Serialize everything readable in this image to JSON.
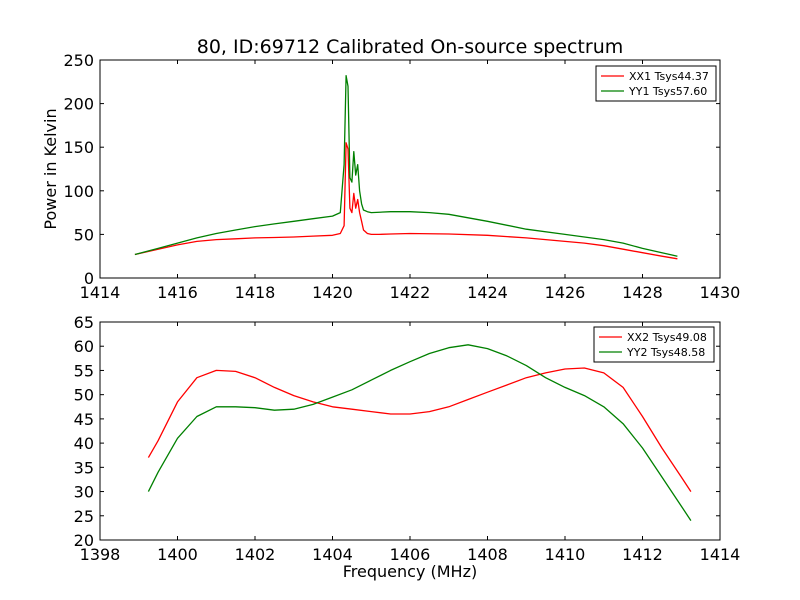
{
  "chart_data": [
    {
      "type": "line",
      "title": "80, ID:69712 Calibrated On-source spectrum",
      "xlabel": "",
      "ylabel": "Power in Kelvin",
      "xlim": [
        1414,
        1430
      ],
      "ylim": [
        0,
        250
      ],
      "xticks": [
        1414,
        1416,
        1418,
        1420,
        1422,
        1424,
        1426,
        1428,
        1430
      ],
      "yticks": [
        0,
        50,
        100,
        150,
        200,
        250
      ],
      "grid": false,
      "legend_position": "top-right",
      "series": [
        {
          "name": "XX1 Tsys44.37",
          "color": "#ff0000",
          "x": [
            1414.9,
            1415.5,
            1416.0,
            1416.5,
            1417.0,
            1417.5,
            1418.0,
            1418.5,
            1419.0,
            1419.5,
            1420.0,
            1420.2,
            1420.3,
            1420.35,
            1420.4,
            1420.45,
            1420.5,
            1420.55,
            1420.6,
            1420.65,
            1420.7,
            1420.75,
            1420.8,
            1420.9,
            1421.0,
            1421.2,
            1421.5,
            1422.0,
            1423.0,
            1424.0,
            1425.0,
            1426.0,
            1426.5,
            1427.0,
            1427.5,
            1428.0,
            1428.5,
            1428.9
          ],
          "y": [
            27,
            33,
            38,
            42,
            44,
            45,
            46,
            46.5,
            47,
            48,
            49,
            51,
            60,
            155,
            148,
            80,
            75,
            97,
            80,
            90,
            75,
            65,
            55,
            51,
            50,
            50,
            50.5,
            51,
            50.5,
            49,
            46,
            42,
            40,
            37,
            33,
            29,
            25,
            22
          ]
        },
        {
          "name": "YY1 Tsys57.60",
          "color": "#008000",
          "x": [
            1414.9,
            1415.5,
            1416.0,
            1416.5,
            1417.0,
            1417.5,
            1418.0,
            1418.5,
            1419.0,
            1419.5,
            1420.0,
            1420.2,
            1420.3,
            1420.35,
            1420.4,
            1420.45,
            1420.5,
            1420.55,
            1420.6,
            1420.65,
            1420.7,
            1420.75,
            1420.8,
            1420.9,
            1421.0,
            1421.5,
            1422.0,
            1422.5,
            1423.0,
            1424.0,
            1425.0,
            1426.0,
            1427.0,
            1427.5,
            1428.0,
            1428.5,
            1428.9
          ],
          "y": [
            27,
            34,
            40,
            46,
            51,
            55,
            59,
            62,
            65,
            68,
            71,
            75,
            130,
            232,
            220,
            115,
            110,
            145,
            118,
            130,
            100,
            85,
            78,
            76,
            75,
            76,
            76,
            75,
            73,
            65,
            56,
            50,
            44,
            40,
            34,
            29,
            25
          ]
        }
      ]
    },
    {
      "type": "line",
      "title": "",
      "xlabel": "Frequency (MHz)",
      "ylabel": "",
      "xlim": [
        1398,
        1414
      ],
      "ylim": [
        20,
        65
      ],
      "xticks": [
        1398,
        1400,
        1402,
        1404,
        1406,
        1408,
        1410,
        1412,
        1414
      ],
      "yticks": [
        20,
        25,
        30,
        35,
        40,
        45,
        50,
        55,
        60,
        65
      ],
      "grid": false,
      "legend_position": "top-right",
      "series": [
        {
          "name": "XX2 Tsys49.08",
          "color": "#ff0000",
          "x": [
            1399.25,
            1399.5,
            1400.0,
            1400.5,
            1401.0,
            1401.5,
            1402.0,
            1402.5,
            1403.0,
            1403.5,
            1404.0,
            1404.5,
            1405.0,
            1405.5,
            1406.0,
            1406.5,
            1407.0,
            1407.5,
            1408.0,
            1408.5,
            1409.0,
            1409.5,
            1410.0,
            1410.5,
            1411.0,
            1411.5,
            1412.0,
            1412.5,
            1413.0,
            1413.25
          ],
          "y": [
            37,
            40.5,
            48.5,
            53.5,
            55,
            54.8,
            53.5,
            51.5,
            49.8,
            48.5,
            47.5,
            47,
            46.5,
            46,
            46,
            46.5,
            47.5,
            49,
            50.5,
            52,
            53.5,
            54.5,
            55.3,
            55.5,
            54.5,
            51.5,
            45.5,
            39,
            33,
            30
          ]
        },
        {
          "name": "YY2 Tsys48.58",
          "color": "#008000",
          "x": [
            1399.25,
            1399.5,
            1400.0,
            1400.5,
            1401.0,
            1401.5,
            1402.0,
            1402.5,
            1403.0,
            1403.5,
            1404.0,
            1404.5,
            1405.0,
            1405.5,
            1406.0,
            1406.5,
            1407.0,
            1407.5,
            1408.0,
            1408.5,
            1409.0,
            1409.5,
            1410.0,
            1410.5,
            1411.0,
            1411.5,
            1412.0,
            1412.5,
            1413.0,
            1413.25
          ],
          "y": [
            30,
            34,
            41,
            45.5,
            47.5,
            47.5,
            47.3,
            46.8,
            47,
            48,
            49.5,
            51,
            53,
            55,
            56.8,
            58.5,
            59.7,
            60.3,
            59.5,
            58,
            56,
            53.5,
            51.5,
            49.8,
            47.5,
            44,
            39,
            33,
            27,
            24
          ]
        }
      ]
    }
  ]
}
